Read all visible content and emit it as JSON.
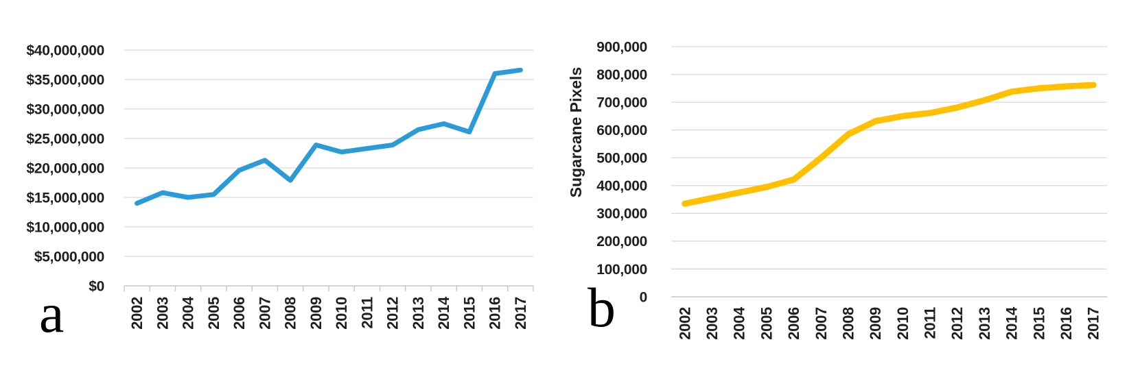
{
  "figure": {
    "background": "#ffffff",
    "panels": [
      {
        "letter": "a"
      },
      {
        "letter": "b"
      }
    ]
  },
  "chart_data": [
    {
      "type": "line",
      "panel": "a",
      "title": "",
      "xlabel": "",
      "ylabel": "",
      "x": [
        "2002",
        "2003",
        "2004",
        "2005",
        "2006",
        "2007",
        "2008",
        "2009",
        "2010",
        "2011",
        "2012",
        "2013",
        "2014",
        "2015",
        "2016",
        "2017"
      ],
      "values": [
        14000000,
        15800000,
        15000000,
        15500000,
        19600000,
        21300000,
        17900000,
        23900000,
        22700000,
        23300000,
        23900000,
        26500000,
        27500000,
        26100000,
        36000000,
        36600000
      ],
      "ylim": [
        0,
        40000000
      ],
      "ytick_interval": 5000000,
      "ytick_labels": [
        "$40,000,000",
        "$35,000,000",
        "$30,000,000",
        "$25,000,000",
        "$20,000,000",
        "$15,000,000",
        "$10,000,000",
        "$5,000,000",
        "$0"
      ],
      "grid": true,
      "legend": "none",
      "line_color": "#2b9bd7",
      "line_width": 7
    },
    {
      "type": "line",
      "panel": "b",
      "title": "",
      "xlabel": "",
      "ylabel": "Sugarcane Pixels",
      "x": [
        "2002",
        "2003",
        "2004",
        "2005",
        "2006",
        "2007",
        "2008",
        "2009",
        "2010",
        "2011",
        "2012",
        "2013",
        "2014",
        "2015",
        "2016",
        "2017"
      ],
      "values": [
        335000,
        355000,
        375000,
        395000,
        422000,
        500000,
        585000,
        632000,
        650000,
        661000,
        681000,
        707000,
        738000,
        750000,
        757000,
        762000
      ],
      "ylim": [
        0,
        900000
      ],
      "ytick_interval": 100000,
      "ytick_labels": [
        "900,000",
        "800,000",
        "700,000",
        "600,000",
        "500,000",
        "400,000",
        "300,000",
        "200,000",
        "100,000",
        "0"
      ],
      "grid": true,
      "legend": "none",
      "line_color": "#ffc000",
      "line_width": 9
    }
  ],
  "colors": {
    "gridline": "#d9d9d9",
    "axis_line": "#c6c6c6",
    "tick": "#c6c6c6",
    "tick_text": "#1f1f1f"
  }
}
